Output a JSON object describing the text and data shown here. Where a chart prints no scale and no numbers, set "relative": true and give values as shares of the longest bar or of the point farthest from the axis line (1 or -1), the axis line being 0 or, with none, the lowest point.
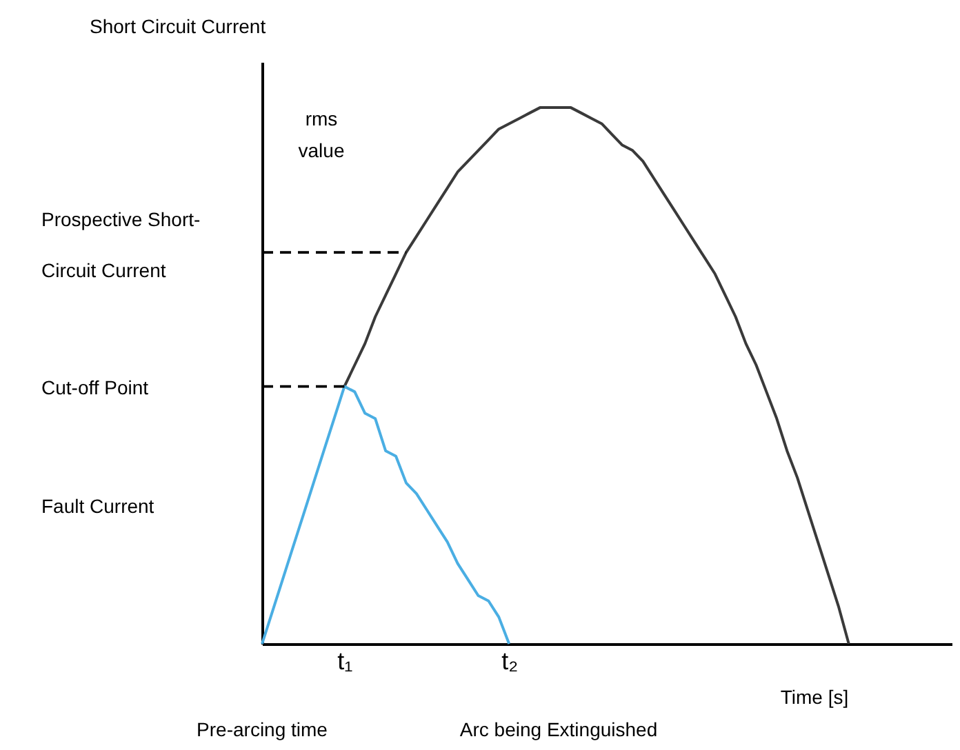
{
  "chart_data": {
    "type": "line",
    "relative": true,
    "xlabel": "Time [s]",
    "categories": [
      null,
      null,
      null,
      null,
      null,
      null,
      null,
      null,
      "t₁",
      null,
      null,
      null,
      null,
      null,
      null,
      null,
      null,
      null,
      null,
      null,
      null,
      null,
      null,
      null,
      "t₂",
      null,
      null,
      null,
      null,
      null,
      null,
      null,
      null,
      null,
      null,
      null,
      null,
      null,
      null,
      null,
      null,
      null,
      null,
      null,
      null,
      null,
      null,
      null,
      null,
      null,
      null,
      null,
      null,
      null,
      null,
      null,
      null,
      null,
      null,
      null,
      null,
      null,
      null,
      null,
      null,
      null,
      null,
      null
    ],
    "series": [
      {
        "color": "#3a3a3a",
        "values": [
          null,
          null,
          null,
          null,
          null,
          null,
          null,
          null,
          0.48,
          0.52,
          0.56,
          0.61,
          0.65,
          0.69,
          0.73,
          0.76,
          0.79,
          0.82,
          0.85,
          0.88,
          0.9,
          0.92,
          0.94,
          0.96,
          0.97,
          0.98,
          0.99,
          1,
          1,
          1,
          1,
          0.99,
          0.98,
          0.97,
          0.95,
          0.93,
          0.92,
          0.9,
          0.87,
          0.84,
          0.81,
          0.78,
          0.75,
          0.72,
          0.69,
          0.65,
          0.61,
          0.56,
          0.52,
          0.47,
          0.42,
          0.36,
          0.31,
          0.25,
          0.19,
          0.13,
          0.07,
          0,
          null,
          null,
          null,
          null,
          null,
          null,
          null,
          null,
          null,
          null
        ]
      },
      {
        "color": "#4aaee3",
        "values": [
          0,
          0.06,
          0.12,
          0.18,
          0.24,
          0.3,
          0.36,
          0.42,
          0.48,
          0.47,
          0.43,
          0.42,
          0.36,
          0.35,
          0.3,
          0.28,
          0.25,
          0.22,
          0.19,
          0.15,
          0.12,
          0.09,
          0.08,
          0.05,
          0,
          null,
          null,
          null,
          null,
          null,
          null,
          null,
          null,
          null,
          null,
          null,
          null,
          null,
          null,
          null,
          null,
          null,
          null,
          null,
          null,
          null,
          null,
          null,
          null,
          null,
          null,
          null,
          null,
          null,
          null,
          null,
          null,
          null,
          null,
          null,
          null,
          null,
          null,
          null,
          null,
          null,
          null,
          null
        ]
      },
      {
        "color": "#000000",
        "line_style": "dashed",
        "values": [
          0.73,
          0.73,
          0.73,
          0.73,
          0.73,
          0.73,
          0.73,
          0.73,
          0.73,
          0.73,
          0.73,
          0.73,
          0.73,
          0.73,
          0.73,
          null,
          null,
          null,
          null,
          null,
          null,
          null,
          null,
          null,
          null,
          null,
          null,
          null,
          null,
          null,
          null,
          null,
          null,
          null,
          null,
          null,
          null,
          null,
          null,
          null,
          null,
          null,
          null,
          null,
          null,
          null,
          null,
          null,
          null,
          null,
          null,
          null,
          null,
          null,
          null,
          null,
          null,
          null,
          null,
          null,
          null,
          null,
          null,
          null,
          null,
          null,
          null,
          null
        ]
      },
      {
        "color": "#000000",
        "line_style": "dashed",
        "values": [
          0.48,
          0.48,
          0.48,
          0.48,
          0.48,
          0.48,
          0.48,
          0.48,
          0.48,
          null,
          null,
          null,
          null,
          null,
          null,
          null,
          null,
          null,
          null,
          null,
          null,
          null,
          null,
          null,
          null,
          null,
          null,
          null,
          null,
          null,
          null,
          null,
          null,
          null,
          null,
          null,
          null,
          null,
          null,
          null,
          null,
          null,
          null,
          null,
          null,
          null,
          null,
          null,
          null,
          null,
          null,
          null,
          null,
          null,
          null,
          null,
          null,
          null,
          null,
          null,
          null,
          null,
          null,
          null,
          null,
          null,
          null,
          null
        ]
      }
    ],
    "annotations": [
      "Short Circuit Current",
      "Prospective Short-Circuit Current",
      "Cut-off Point",
      "Fault Current",
      "rms value",
      "Pre-arcing time",
      "Arc being Extinguished"
    ]
  }
}
